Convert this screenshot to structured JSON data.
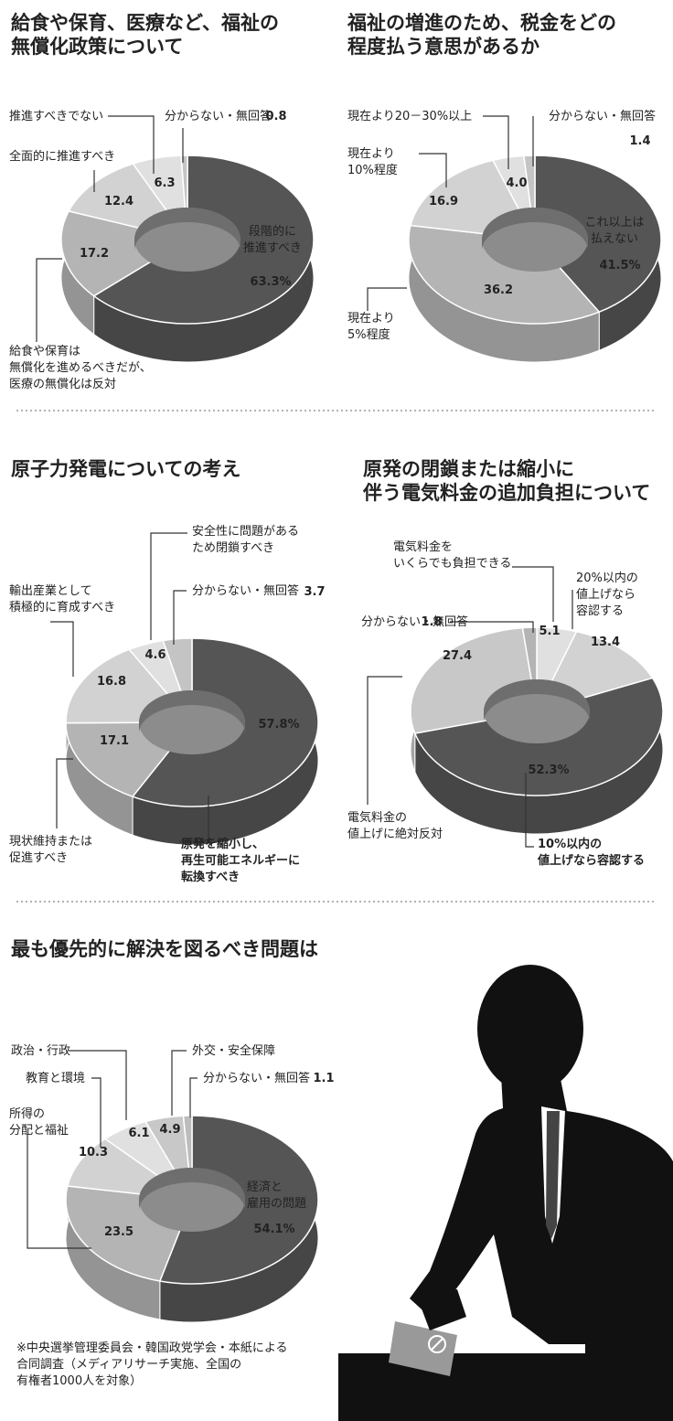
{
  "chart_data": [
    {
      "type": "pie",
      "title": "給食や保育、医療など、福祉の\n無償化政策について",
      "categories": [
        "段階的に\n推進すべき",
        "給食や保育は\n無償化を進めるべきだが、\n医療の無償化は反対",
        "全面的に推進すべき",
        "推進すべきでない",
        "分からない・無回答"
      ],
      "values": [
        63.3,
        17.2,
        12.4,
        6.3,
        0.8
      ],
      "value_labels": [
        "63.3%",
        "17.2",
        "12.4",
        "6.3",
        "0.8"
      ],
      "colors": [
        "#555555",
        "#b4b4b4",
        "#d2d2d2",
        "#e0e0e0",
        "#c4c4c4"
      ]
    },
    {
      "type": "pie",
      "title": "福祉の増進のため、税金をどの\n程度払う意思があるか",
      "categories": [
        "これ以上は\n払えない",
        "現在より\n5%程度",
        "現在より\n10%程度",
        "現在より20－30%以上",
        "分からない・無回答"
      ],
      "values": [
        41.5,
        36.2,
        16.9,
        4.0,
        1.4
      ],
      "value_labels": [
        "41.5%",
        "36.2",
        "16.9",
        "4.0",
        "1.4"
      ],
      "colors": [
        "#555555",
        "#b4b4b4",
        "#d2d2d2",
        "#e0e0e0",
        "#c4c4c4"
      ]
    },
    {
      "type": "pie",
      "title": "原子力発電についての考え",
      "categories": [
        "原発を縮小し、\n再生可能エネルギーに\n転換すべき",
        "現状維持または\n促進すべき",
        "輸出産業として\n積極的に育成すべき",
        "安全性に問題がある\nため閉鎖すべき",
        "分からない・無回答"
      ],
      "values": [
        57.8,
        17.1,
        16.8,
        4.6,
        3.7
      ],
      "value_labels": [
        "57.8%",
        "17.1",
        "16.8",
        "4.6",
        "3.7"
      ],
      "colors": [
        "#555555",
        "#b4b4b4",
        "#d2d2d2",
        "#e0e0e0",
        "#c4c4c4"
      ]
    },
    {
      "type": "pie",
      "title": "原発の閉鎖または縮小に\n伴う電気料金の追加負担について",
      "categories": [
        "電気料金を\nいくらでも負担できる",
        "20%以内の\n値上げなら\n容認する",
        "10%以内の\n値上げなら容認する",
        "電気料金の\n値上げに絶対反対",
        "分からない・無回答"
      ],
      "values": [
        5.1,
        13.4,
        52.3,
        27.4,
        1.8
      ],
      "value_labels": [
        "5.1",
        "13.4",
        "52.3%",
        "27.4",
        "1.8"
      ],
      "colors": [
        "#e0e0e0",
        "#d2d2d2",
        "#555555",
        "#c8c8c8",
        "#b4b4b4"
      ]
    },
    {
      "type": "pie",
      "title": "最も優先的に解決を図るべき問題は",
      "categories": [
        "経済と\n雇用の問題",
        "所得の\n分配と福祉",
        "教育と環境",
        "政治・行政",
        "外交・安全保障",
        "分からない・無回答"
      ],
      "values": [
        54.1,
        23.5,
        10.3,
        6.1,
        4.9,
        1.1
      ],
      "value_labels": [
        "54.1%",
        "23.5",
        "10.3",
        "6.1",
        "4.9",
        "1.1"
      ],
      "colors": [
        "#555555",
        "#b4b4b4",
        "#d2d2d2",
        "#e0e0e0",
        "#c8c8c8",
        "#bcbcbc"
      ]
    }
  ],
  "footnote": "※中央選挙管理委員会・韓国政党学会・本紙による\n合同調査（メディアリサーチ実施、全国の\n有権者1000人を対象）"
}
